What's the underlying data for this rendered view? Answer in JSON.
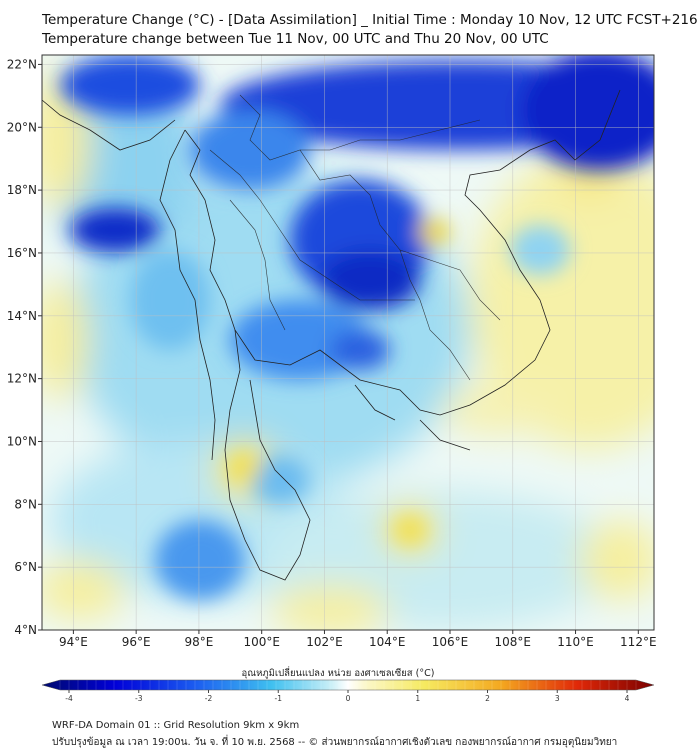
{
  "header": {
    "title_line1": "Temperature Change (°C) - [Data Assimilation] _ Initial Time : Monday 10 Nov, 12 UTC FCST+216",
    "title_line2": "Temperature change between Tue 11 Nov, 00 UTC and Thu 20 Nov, 00 UTC"
  },
  "map": {
    "lon_range": [
      93,
      112.5
    ],
    "lat_range": [
      4,
      22.3
    ],
    "lon_ticks": [
      "94°E",
      "96°E",
      "98°E",
      "100°E",
      "102°E",
      "104°E",
      "106°E",
      "108°E",
      "110°E",
      "112°E"
    ],
    "lat_ticks": [
      "4°N",
      "6°N",
      "8°N",
      "10°N",
      "12°N",
      "14°N",
      "16°N",
      "18°N",
      "20°N",
      "22°N"
    ],
    "lon_tick_values": [
      94,
      96,
      98,
      100,
      102,
      104,
      106,
      108,
      110,
      112
    ],
    "lat_tick_values": [
      4,
      6,
      8,
      10,
      12,
      14,
      16,
      18,
      20,
      22
    ]
  },
  "colorbar": {
    "label": "อุณหภูมิเปลี่ยนแปลง หน่วย องศาเซลเซียส (°C)",
    "ticks": [
      "-4",
      "-3",
      "-2",
      "-1",
      "0",
      "1",
      "2",
      "3",
      "4"
    ],
    "tick_values": [
      -4,
      -3,
      -2,
      -1,
      0,
      1,
      2,
      3,
      4
    ],
    "min": -4,
    "max": 4
  },
  "footer": {
    "line1": "WRF-DA Domain 01 :: Grid Resolution 9km x 9km",
    "line2": "ปรับปรุงข้อมูล ณ เวลา 19:00น. วัน จ. ที่ 10 พ.ย. 2568 -- © ส่วนพยากรณ์อากาศเชิงตัวเลข กองพยากรณ์อากาศ กรมอุตุนิยมวิทยา"
  },
  "colors": {
    "deep_blue": "#0a2ad0",
    "blue": "#1f6ff0",
    "light_blue": "#8fd3f2",
    "pale": "#e6f7fb",
    "yellow": "#f7f2a0",
    "orange": "#f0d040",
    "red": "#b00000"
  }
}
